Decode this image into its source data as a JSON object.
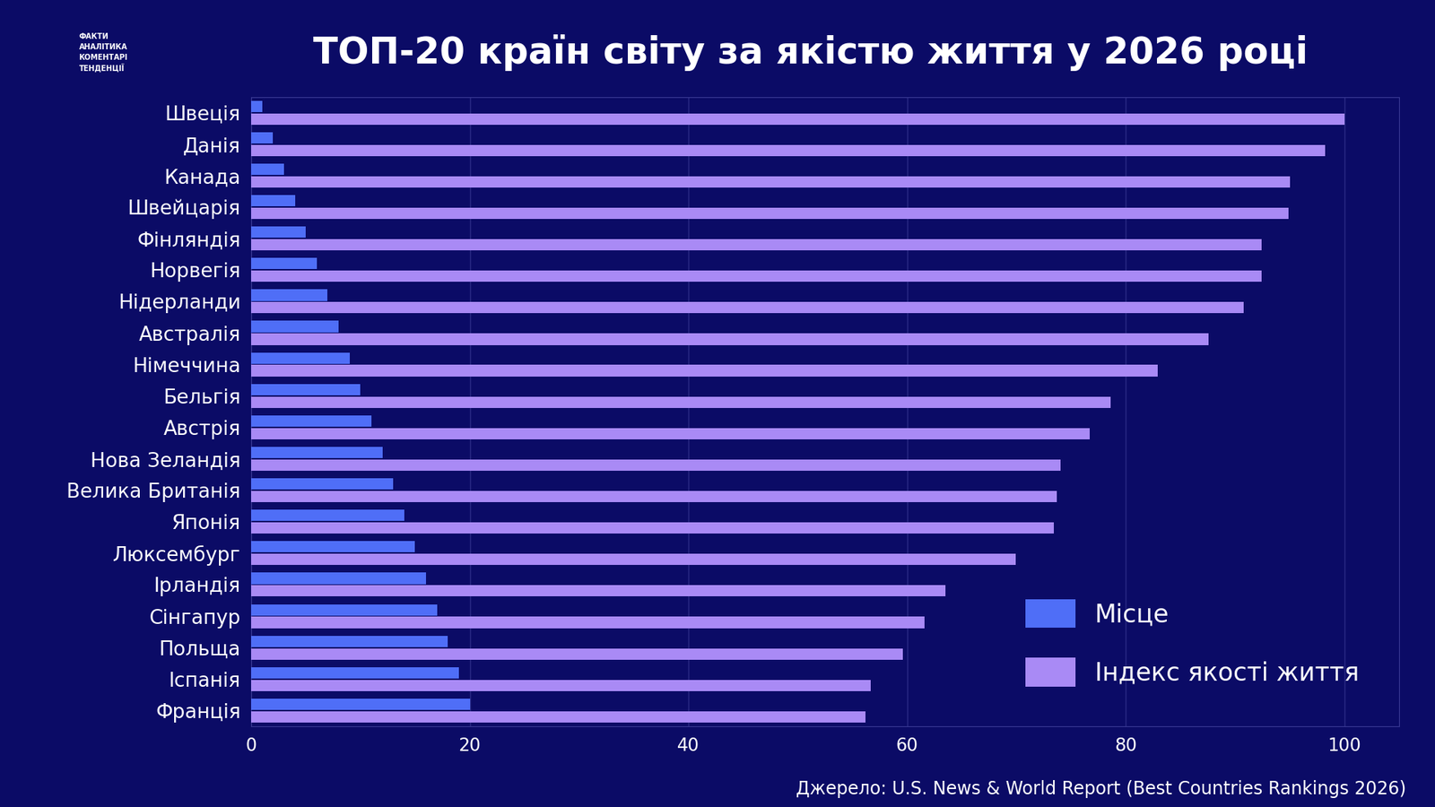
{
  "chart_data": {
    "type": "bar",
    "orientation": "horizontal",
    "title": "ТОП-20 країн світу за якістю життя у 2026 році",
    "categories": [
      "Швеція",
      "Данія",
      "Канада",
      "Швейцарія",
      "Фінляндія",
      "Норвегія",
      "Нідерланди",
      "Австралія",
      "Німеччина",
      "Бельгія",
      "Австрія",
      "Нова Зеландія",
      "Велика Британія",
      "Японія",
      "Люксембург",
      "Ірландія",
      "Сінгапур",
      "Польща",
      "Іспанія",
      "Франція"
    ],
    "series": [
      {
        "name": "Місце",
        "color": "#4f6ef7",
        "values": [
          1,
          2,
          3,
          4,
          5,
          6,
          7,
          8,
          9,
          10,
          11,
          12,
          13,
          14,
          15,
          16,
          17,
          18,
          19,
          20
        ]
      },
      {
        "name": "Індекс якості життя",
        "color": "#a98af5",
        "values": [
          100,
          98.2,
          95.0,
          94.9,
          92.4,
          92.4,
          90.8,
          87.6,
          82.9,
          78.6,
          76.7,
          74.0,
          73.7,
          73.4,
          69.9,
          63.5,
          61.6,
          59.6,
          56.7,
          56.2
        ]
      }
    ],
    "xlim": [
      0,
      105
    ],
    "xticks": [
      0,
      20,
      40,
      60,
      80,
      100
    ],
    "grid": true,
    "legend": "lower right",
    "source": "Джерело: U.S. News & World Report (Best Countries Rankings 2026)",
    "logo": [
      "ФАКТИ",
      "АНАЛІТИКА",
      "КОМЕНТАРІ",
      "ТЕНДЕНЦІЇ"
    ]
  }
}
